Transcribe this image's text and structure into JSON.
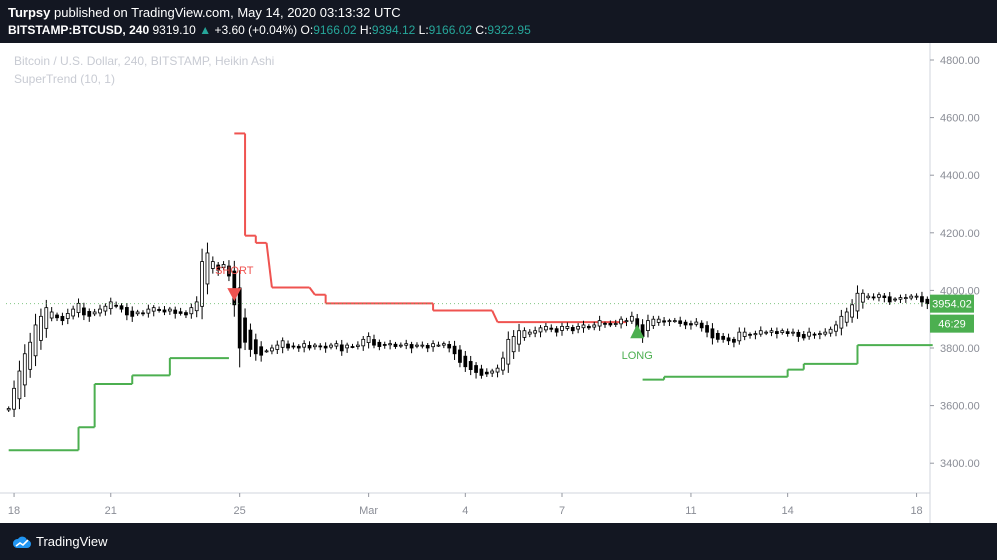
{
  "header": {
    "author": "Turpsy",
    "published": "published on TradingView.com, May 14, 2020 03:13:32 UTC",
    "symbol": "BITSTAMP:BTCUSD, 240",
    "last": "9319.10",
    "change": "+3.60 (+0.04%)",
    "o_label": "O:",
    "o_value": "9166.02",
    "h_label": "H:",
    "h_value": "9394.12",
    "l_label": "L:",
    "l_value": "9166.02",
    "c_label": "C:",
    "c_value": "9322.95"
  },
  "footer": {
    "brand": "TradingView"
  },
  "colors": {
    "background": "#ffffff",
    "supertrend_up": "#4caf50",
    "supertrend_down": "#ef5350",
    "price_tag": "#4caf50",
    "candle": "#000000"
  },
  "chart_data": {
    "type": "candlestick",
    "title": "Bitcoin / U.S. Dollar, 240, BITSTAMP, Heikin Ashi",
    "indicator_label": "SuperTrend (10, 1)",
    "ylim": [
      3250,
      4900
    ],
    "y_ticks": [
      "4800.00",
      "4600.00",
      "4400.00",
      "4200.00",
      "4000.00",
      "3800.00",
      "3600.00",
      "3400.00"
    ],
    "y_tick_values": [
      4800,
      4600,
      4400,
      4200,
      4000,
      3800,
      3600,
      3400
    ],
    "x_ticks": [
      {
        "label": "18",
        "i": 1
      },
      {
        "label": "21",
        "i": 19
      },
      {
        "label": "25",
        "i": 43
      },
      {
        "label": "Mar",
        "i": 67
      },
      {
        "label": "4",
        "i": 85
      },
      {
        "label": "7",
        "i": 103
      },
      {
        "label": "11",
        "i": 127
      },
      {
        "label": "14",
        "i": 145
      },
      {
        "label": "18",
        "i": 169
      }
    ],
    "grid": false,
    "current_price_label": "3954.02",
    "countdown_label": "46:29",
    "current_price": 3954,
    "signals": [
      {
        "type": "short",
        "label": "SHORT",
        "i": 42,
        "price": 3980
      },
      {
        "type": "long",
        "label": "LONG",
        "i": 117,
        "price": 3820
      }
    ],
    "closes": [
      3590,
      3660,
      3720,
      3780,
      3820,
      3880,
      3910,
      3940,
      3925,
      3905,
      3895,
      3920,
      3935,
      3955,
      3915,
      3910,
      3925,
      3935,
      3945,
      3960,
      3945,
      3935,
      3915,
      3910,
      3925,
      3920,
      3935,
      3940,
      3930,
      3925,
      3935,
      3920,
      3920,
      3915,
      3940,
      3960,
      4100,
      4130,
      4100,
      4070,
      4090,
      4050,
      3950,
      3800,
      3820,
      3795,
      3780,
      3775,
      3790,
      3800,
      3810,
      3825,
      3800,
      3805,
      3800,
      3815,
      3800,
      3810,
      3805,
      3800,
      3810,
      3815,
      3790,
      3810,
      3805,
      3810,
      3830,
      3840,
      3810,
      3805,
      3810,
      3815,
      3805,
      3810,
      3815,
      3800,
      3810,
      3810,
      3800,
      3815,
      3810,
      3815,
      3800,
      3780,
      3750,
      3735,
      3725,
      3715,
      3705,
      3710,
      3720,
      3730,
      3765,
      3830,
      3840,
      3860,
      3860,
      3855,
      3860,
      3870,
      3875,
      3865,
      3855,
      3875,
      3875,
      3860,
      3875,
      3880,
      3870,
      3880,
      3895,
      3885,
      3880,
      3885,
      3900,
      3895,
      3910,
      3860,
      3840,
      3895,
      3900,
      3900,
      3890,
      3895,
      3895,
      3885,
      3880,
      3880,
      3890,
      3870,
      3855,
      3835,
      3830,
      3830,
      3825,
      3820,
      3855,
      3855,
      3845,
      3850,
      3860,
      3855,
      3860,
      3850,
      3860,
      3850,
      3855,
      3840,
      3835,
      3855,
      3845,
      3850,
      3855,
      3865,
      3880,
      3910,
      3925,
      3950,
      3990,
      3990,
      3980,
      3975,
      3985,
      3975,
      3960,
      3970,
      3975,
      3975,
      3980,
      3980,
      3960,
      3954
    ],
    "supertrend": [
      {
        "from": 0,
        "to": 13,
        "value": 3445,
        "trend": "up"
      },
      {
        "from": 13,
        "to": 16,
        "value": 3525,
        "trend": "up"
      },
      {
        "from": 16,
        "to": 23,
        "value": 3675,
        "trend": "up"
      },
      {
        "from": 23,
        "to": 30,
        "value": 3705,
        "trend": "up"
      },
      {
        "from": 30,
        "to": 41,
        "value": 3765,
        "trend": "up"
      },
      {
        "from": 42,
        "to": 44,
        "value": 4545,
        "trend": "down"
      },
      {
        "from": 44,
        "to": 46,
        "value": 4190,
        "trend": "down"
      },
      {
        "from": 46,
        "to": 48,
        "value": 4165,
        "trend": "down"
      },
      {
        "from": 49,
        "to": 56,
        "value": 4010,
        "trend": "down"
      },
      {
        "from": 57,
        "to": 59,
        "value": 3985,
        "trend": "down"
      },
      {
        "from": 59,
        "to": 79,
        "value": 3955,
        "trend": "down"
      },
      {
        "from": 79,
        "to": 90,
        "value": 3930,
        "trend": "down"
      },
      {
        "from": 91,
        "to": 115,
        "value": 3890,
        "trend": "down"
      },
      {
        "from": 118,
        "to": 122,
        "value": 3690,
        "trend": "up"
      },
      {
        "from": 122,
        "to": 145,
        "value": 3700,
        "trend": "up"
      },
      {
        "from": 145,
        "to": 148,
        "value": 3725,
        "trend": "up"
      },
      {
        "from": 148,
        "to": 158,
        "value": 3745,
        "trend": "up"
      },
      {
        "from": 158,
        "to": 172,
        "value": 3810,
        "trend": "up"
      }
    ]
  }
}
